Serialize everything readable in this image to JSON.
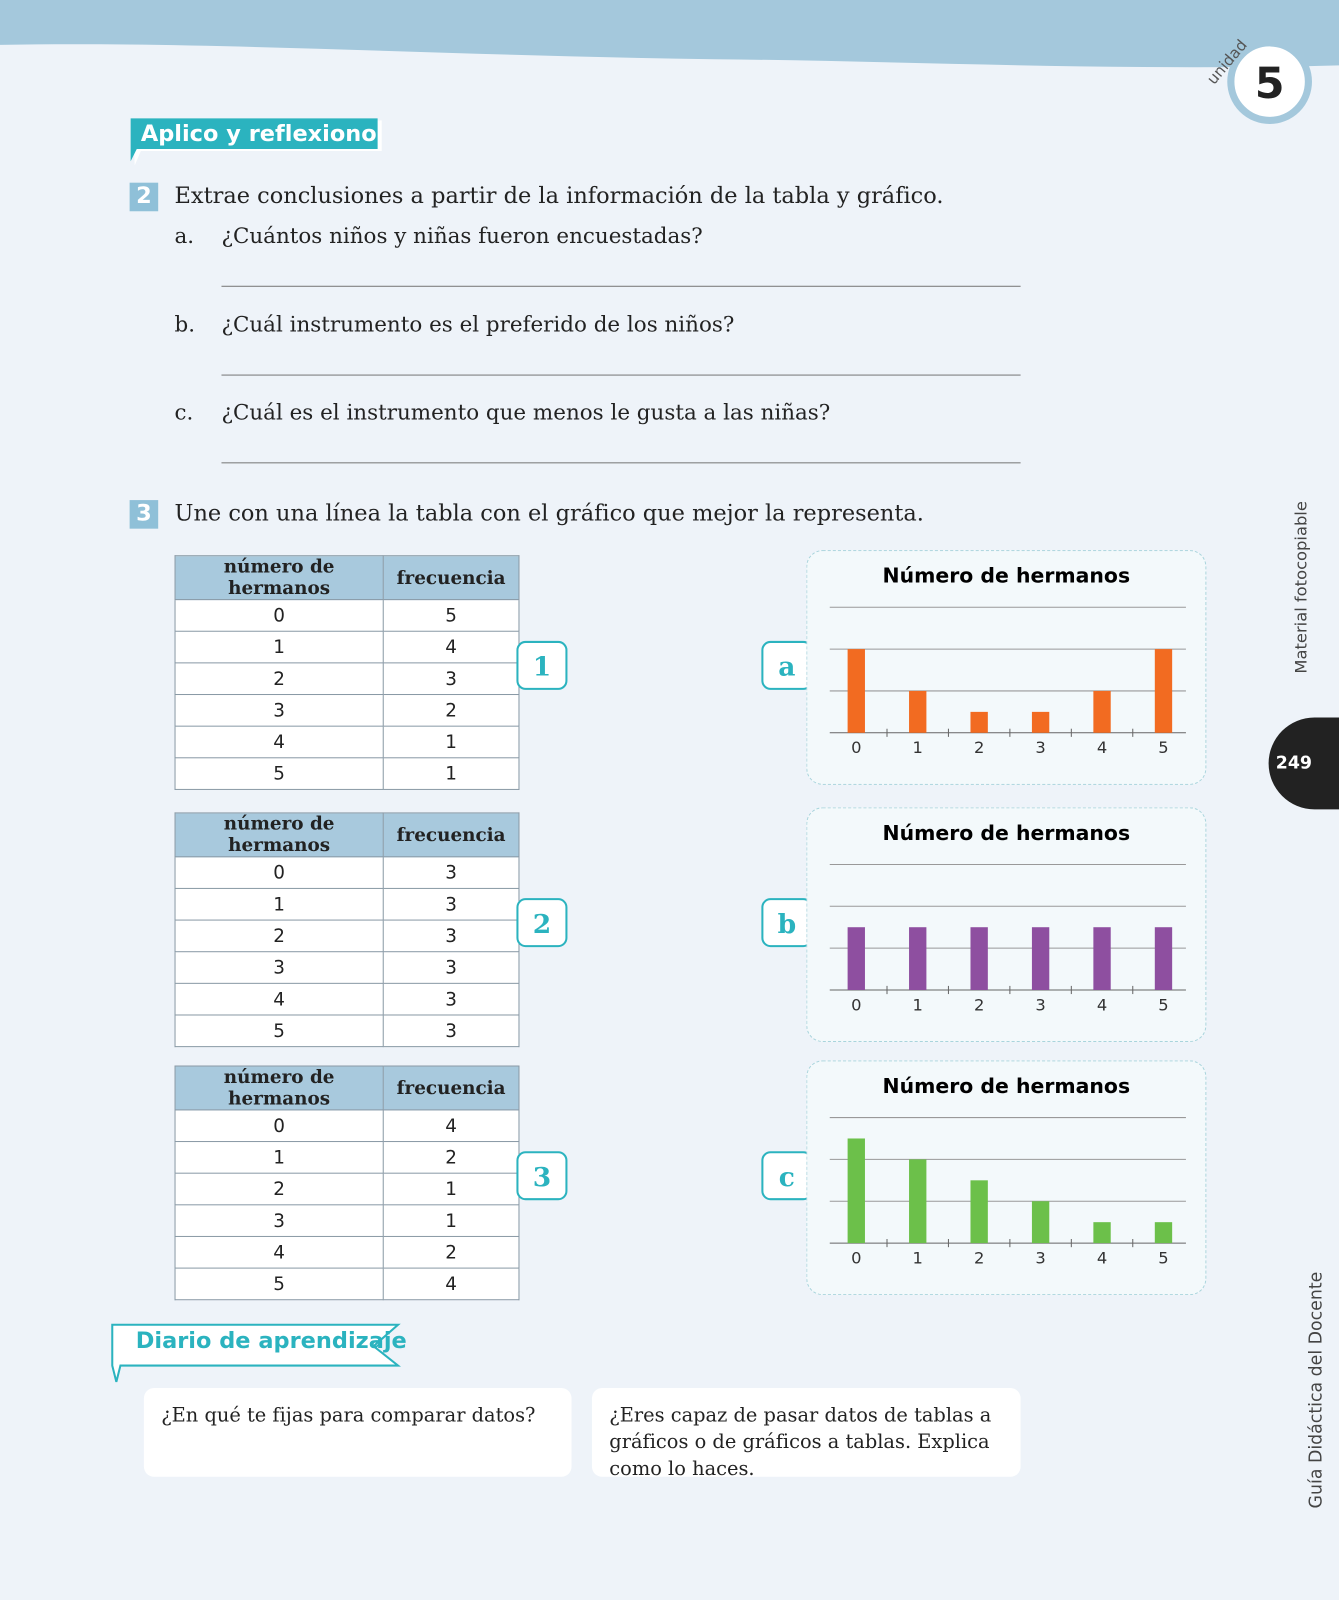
{
  "header": {
    "unit_label": "unidad",
    "unit_number": "5",
    "page_number": "249",
    "side_top": "Material fotocopiable",
    "side_bottom": "Guía Didáctica del Docente"
  },
  "section_title": "Aplico y reflexiono",
  "exercise2": {
    "number": "2",
    "prompt": "Extrae conclusiones a partir de la información de la tabla y gráfico.",
    "questions": [
      {
        "letter": "a.",
        "text": "¿Cuántos niños y niñas fueron encuestadas?"
      },
      {
        "letter": "b.",
        "text": "¿Cuál instrumento es el preferido de los niños?"
      },
      {
        "letter": "c.",
        "text": "¿Cuál es el instrumento que menos le gusta a las niñas?"
      }
    ]
  },
  "exercise3": {
    "number": "3",
    "prompt": "Une con una línea la tabla con el gráfico que mejor la representa.",
    "tables": [
      {
        "tag": "1",
        "header": [
          "número de hermanos",
          "frecuencia"
        ],
        "rows": [
          [
            0,
            5
          ],
          [
            1,
            4
          ],
          [
            2,
            3
          ],
          [
            3,
            2
          ],
          [
            4,
            1
          ],
          [
            5,
            1
          ]
        ]
      },
      {
        "tag": "2",
        "header": [
          "número de hermanos",
          "frecuencia"
        ],
        "rows": [
          [
            0,
            3
          ],
          [
            1,
            3
          ],
          [
            2,
            3
          ],
          [
            3,
            3
          ],
          [
            4,
            3
          ],
          [
            5,
            3
          ]
        ]
      },
      {
        "tag": "3",
        "header": [
          "número de hermanos",
          "frecuencia"
        ],
        "rows": [
          [
            0,
            4
          ],
          [
            1,
            2
          ],
          [
            2,
            1
          ],
          [
            3,
            1
          ],
          [
            4,
            2
          ],
          [
            5,
            4
          ]
        ]
      }
    ]
  },
  "chart_data": [
    {
      "type": "bar",
      "label": "a",
      "title": "Número de hermanos",
      "categories": [
        "0",
        "1",
        "2",
        "3",
        "4",
        "5"
      ],
      "values": [
        4,
        2,
        1,
        1,
        2,
        4
      ],
      "color": "#f26b21",
      "ylim": [
        0,
        6
      ],
      "yticks": [
        0,
        2,
        4,
        6
      ],
      "grid": true
    },
    {
      "type": "bar",
      "label": "b",
      "title": "Número de hermanos",
      "categories": [
        "0",
        "1",
        "2",
        "3",
        "4",
        "5"
      ],
      "values": [
        3,
        3,
        3,
        3,
        3,
        3
      ],
      "color": "#8e4fa0",
      "ylim": [
        0,
        6
      ],
      "yticks": [
        0,
        2,
        4,
        6
      ],
      "grid": true
    },
    {
      "type": "bar",
      "label": "c",
      "title": "Número de hermanos",
      "categories": [
        "0",
        "1",
        "2",
        "3",
        "4",
        "5"
      ],
      "values": [
        5,
        4,
        3,
        2,
        1,
        1
      ],
      "color": "#6cc04a",
      "ylim": [
        0,
        6
      ],
      "yticks": [
        0,
        2,
        4,
        6
      ],
      "grid": true
    }
  ],
  "diary": {
    "title": "Diario de aprendizaje",
    "prompts": [
      "¿En qué te fijas para comparar datos?",
      "¿Eres capaz de pasar datos de tablas a gráficos o de gráficos a tablas. Explica como lo haces."
    ]
  }
}
